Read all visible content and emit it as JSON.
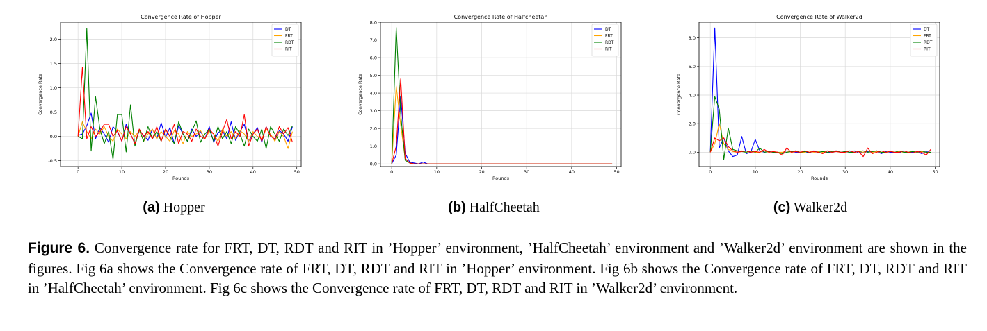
{
  "chart_data": [
    {
      "type": "line",
      "title": "Convergence Rate of Hopper",
      "xlabel": "Rounds",
      "ylabel": "Convergence Rate",
      "xlim": [
        -4,
        51
      ],
      "ylim": [
        -0.62,
        2.35
      ],
      "xticks": [
        0,
        10,
        20,
        30,
        40,
        50
      ],
      "yticks": [
        -0.5,
        0.0,
        0.5,
        1.0,
        1.5,
        2.0
      ],
      "ytick_labels": [
        "-0.5",
        "0.0",
        "0.5",
        "1.0",
        "1.5",
        "2.0"
      ],
      "grid": true,
      "legend": "top-right",
      "x": [
        0,
        1,
        2,
        3,
        4,
        5,
        6,
        7,
        8,
        9,
        10,
        11,
        12,
        13,
        14,
        15,
        16,
        17,
        18,
        19,
        20,
        21,
        22,
        23,
        24,
        25,
        26,
        27,
        28,
        29,
        30,
        31,
        32,
        33,
        34,
        35,
        36,
        37,
        38,
        39,
        40,
        41,
        42,
        43,
        44,
        45,
        46,
        47,
        48,
        49
      ],
      "series": [
        {
          "name": "DT",
          "color": "#0000ff",
          "values": [
            0.02,
            0.05,
            0.22,
            0.48,
            -0.05,
            0.18,
            0.05,
            -0.12,
            0.2,
            0.1,
            -0.1,
            0.25,
            0.05,
            -0.15,
            0.12,
            0.02,
            -0.08,
            0.15,
            -0.05,
            0.28,
            -0.02,
            0.18,
            -0.15,
            0.22,
            0.05,
            -0.1,
            0.15,
            0.0,
            0.1,
            -0.05,
            0.2,
            -0.12,
            0.08,
            0.12,
            -0.05,
            0.3,
            -0.08,
            0.1,
            0.25,
            -0.1,
            0.05,
            0.18,
            -0.12,
            0.2,
            0.02,
            -0.08,
            0.12,
            0.05,
            -0.1,
            0.2
          ]
        },
        {
          "name": "FRT",
          "color": "#ffa500",
          "values": [
            0.0,
            0.3,
            0.1,
            -0.05,
            0.15,
            0.05,
            0.2,
            0.0,
            -0.1,
            0.15,
            0.05,
            -0.05,
            0.1,
            0.0,
            0.12,
            -0.1,
            0.05,
            0.15,
            -0.05,
            0.1,
            0.0,
            -0.1,
            0.12,
            0.05,
            -0.15,
            0.1,
            0.0,
            0.05,
            0.12,
            -0.05,
            0.1,
            0.05,
            -0.1,
            0.15,
            0.0,
            0.1,
            -0.05,
            0.12,
            0.05,
            -0.1,
            0.1,
            0.0,
            -0.05,
            0.15,
            0.05,
            -0.1,
            0.1,
            0.0,
            -0.25,
            0.1
          ]
        },
        {
          "name": "RDT",
          "color": "#008000",
          "values": [
            0.0,
            -0.05,
            2.22,
            -0.3,
            0.82,
            0.15,
            -0.15,
            0.1,
            -0.47,
            0.45,
            0.45,
            -0.32,
            0.65,
            -0.2,
            0.15,
            -0.1,
            0.2,
            -0.05,
            0.1,
            -0.1,
            0.15,
            0.0,
            -0.15,
            0.3,
            0.05,
            -0.1,
            0.1,
            0.32,
            -0.12,
            0.05,
            0.15,
            -0.1,
            0.2,
            -0.05,
            0.1,
            -0.15,
            0.2,
            0.05,
            -0.2,
            0.15,
            0.0,
            -0.1,
            0.15,
            -0.25,
            0.2,
            0.05,
            -0.1,
            0.15,
            0.02,
            0.22
          ]
        },
        {
          "name": "RIT",
          "color": "#ff0000",
          "values": [
            0.0,
            1.42,
            -0.05,
            0.2,
            0.0,
            0.1,
            0.25,
            0.25,
            0.0,
            0.12,
            -0.1,
            0.2,
            0.05,
            -0.15,
            0.15,
            0.0,
            0.1,
            -0.05,
            0.2,
            -0.1,
            0.15,
            0.0,
            0.25,
            -0.15,
            0.1,
            0.05,
            -0.1,
            0.15,
            0.0,
            -0.05,
            0.15,
            0.05,
            -0.2,
            0.1,
            0.35,
            -0.05,
            0.1,
            0.0,
            0.45,
            -0.2,
            0.05,
            0.15,
            -0.1,
            0.2,
            0.0,
            -0.05,
            0.2,
            0.05,
            0.18,
            -0.12
          ]
        }
      ]
    },
    {
      "type": "line",
      "title": "Convergence Rate of Halfcheetah",
      "xlabel": "Rounds",
      "ylabel": "Convergence Rate",
      "xlim": [
        -2.5,
        51
      ],
      "ylim": [
        -0.15,
        8.0
      ],
      "xticks": [
        0,
        10,
        20,
        30,
        40,
        50
      ],
      "yticks": [
        0.0,
        1.0,
        2.0,
        3.0,
        4.0,
        5.0,
        6.0,
        7.0,
        8.0
      ],
      "ytick_labels": [
        "0.0",
        "1.0",
        "2.0",
        "3.0",
        "4.0",
        "5.0",
        "6.0",
        "7.0",
        "8.0"
      ],
      "grid": true,
      "legend": "top-right",
      "x": [
        0,
        1,
        2,
        3,
        4,
        5,
        6,
        7,
        8,
        9,
        10,
        11,
        12,
        13,
        14,
        15,
        16,
        17,
        18,
        19,
        20,
        21,
        22,
        23,
        24,
        25,
        26,
        27,
        28,
        29,
        30,
        31,
        32,
        33,
        34,
        35,
        36,
        37,
        38,
        39,
        40,
        41,
        42,
        43,
        44,
        45,
        46,
        47,
        48,
        49
      ],
      "series": [
        {
          "name": "DT",
          "color": "#0000ff",
          "values": [
            0.0,
            0.5,
            3.8,
            0.6,
            0.1,
            0.05,
            0.0,
            0.1,
            0.0,
            0.0,
            0.0,
            0.0,
            0.0,
            0.0,
            0.0,
            0.0,
            0.0,
            0.0,
            0.0,
            0.0,
            0.0,
            0.0,
            0.0,
            0.0,
            0.0,
            0.0,
            0.0,
            0.0,
            0.0,
            0.0,
            0.0,
            0.0,
            0.0,
            0.0,
            0.0,
            0.0,
            0.0,
            0.0,
            0.0,
            0.0,
            0.0,
            0.0,
            0.0,
            0.0,
            0.0,
            0.0,
            0.0,
            0.0,
            0.0,
            0.0
          ]
        },
        {
          "name": "FRT",
          "color": "#ffa500",
          "values": [
            0.0,
            4.4,
            2.2,
            0.3,
            0.05,
            0.0,
            0.0,
            0.0,
            0.0,
            0.0,
            0.0,
            0.0,
            0.0,
            0.0,
            0.0,
            0.0,
            0.0,
            0.0,
            0.0,
            0.0,
            0.0,
            0.0,
            0.0,
            0.0,
            0.0,
            0.0,
            0.0,
            0.0,
            0.0,
            0.0,
            0.0,
            0.0,
            0.0,
            0.0,
            0.0,
            0.0,
            0.0,
            0.0,
            0.0,
            0.0,
            0.0,
            0.0,
            0.0,
            0.0,
            0.0,
            0.0,
            0.0,
            0.0,
            0.0,
            0.0
          ]
        },
        {
          "name": "RDT",
          "color": "#008000",
          "values": [
            0.0,
            7.7,
            2.8,
            0.2,
            0.05,
            0.0,
            0.0,
            0.0,
            0.0,
            0.0,
            0.0,
            0.0,
            0.0,
            0.0,
            0.0,
            0.0,
            0.0,
            0.0,
            0.0,
            0.0,
            0.0,
            0.0,
            0.0,
            0.0,
            0.0,
            0.0,
            0.0,
            0.0,
            0.0,
            0.0,
            0.0,
            0.0,
            0.0,
            0.0,
            0.0,
            0.0,
            0.0,
            0.0,
            0.0,
            0.0,
            0.0,
            0.0,
            0.0,
            0.0,
            0.0,
            0.0,
            0.0,
            0.0,
            0.0,
            0.0
          ]
        },
        {
          "name": "RIT",
          "color": "#ff0000",
          "values": [
            0.0,
            1.0,
            4.8,
            0.3,
            0.05,
            0.0,
            0.0,
            0.0,
            0.0,
            0.0,
            0.0,
            0.0,
            0.0,
            0.0,
            0.0,
            0.0,
            0.0,
            0.0,
            0.0,
            0.0,
            0.0,
            0.0,
            0.0,
            0.0,
            0.0,
            0.0,
            0.0,
            0.0,
            0.0,
            0.0,
            0.0,
            0.0,
            0.0,
            0.0,
            0.0,
            0.0,
            0.0,
            0.0,
            0.0,
            0.0,
            0.0,
            0.0,
            0.0,
            0.0,
            0.0,
            0.0,
            0.0,
            0.0,
            0.0,
            0.0
          ]
        }
      ]
    },
    {
      "type": "line",
      "title": "Convergence Rate of Walker2d",
      "xlabel": "Rounds",
      "ylabel": "Convergence Rate",
      "xlim": [
        -2.5,
        51
      ],
      "ylim": [
        -1.0,
        9.1
      ],
      "xticks": [
        0,
        10,
        20,
        30,
        40,
        50
      ],
      "yticks": [
        0.0,
        2.0,
        4.0,
        6.0,
        8.0
      ],
      "ytick_labels": [
        "0.0",
        "2.0",
        "4.0",
        "6.0",
        "8.0"
      ],
      "grid": true,
      "legend": "top-right",
      "x": [
        0,
        1,
        2,
        3,
        4,
        5,
        6,
        7,
        8,
        9,
        10,
        11,
        12,
        13,
        14,
        15,
        16,
        17,
        18,
        19,
        20,
        21,
        22,
        23,
        24,
        25,
        26,
        27,
        28,
        29,
        30,
        31,
        32,
        33,
        34,
        35,
        36,
        37,
        38,
        39,
        40,
        41,
        42,
        43,
        44,
        45,
        46,
        47,
        48,
        49
      ],
      "series": [
        {
          "name": "DT",
          "color": "#0000ff",
          "values": [
            0.0,
            8.7,
            0.3,
            1.0,
            0.1,
            -0.3,
            -0.2,
            1.1,
            -0.1,
            0.0,
            0.9,
            0.1,
            0.0,
            0.05,
            0.0,
            0.0,
            -0.05,
            0.1,
            0.05,
            0.0,
            0.0,
            0.05,
            -0.05,
            0.1,
            0.0,
            0.05,
            0.0,
            -0.05,
            0.1,
            0.0,
            0.05,
            0.0,
            0.1,
            -0.05,
            0.0,
            0.05,
            0.0,
            0.1,
            -0.1,
            0.05,
            0.0,
            0.0,
            -0.05,
            0.1,
            0.0,
            0.0,
            0.05,
            -0.1,
            0.05,
            0.1
          ]
        },
        {
          "name": "FRT",
          "color": "#ffa500",
          "values": [
            0.0,
            0.6,
            2.0,
            0.6,
            0.2,
            0.05,
            0.0,
            0.1,
            0.0,
            0.05,
            0.0,
            0.0,
            0.1,
            0.0,
            0.05,
            0.0,
            0.0,
            0.1,
            0.0,
            0.05,
            0.0,
            0.0,
            0.1,
            0.0,
            0.05,
            0.0,
            0.1,
            0.0,
            0.05,
            0.0,
            0.0,
            0.1,
            0.0,
            0.05,
            0.0,
            0.1,
            0.0,
            0.05,
            0.0,
            0.0,
            0.1,
            0.0,
            0.05,
            0.0,
            0.0,
            0.1,
            0.0,
            0.05,
            0.0,
            0.0
          ]
        },
        {
          "name": "RDT",
          "color": "#008000",
          "values": [
            0.0,
            3.9,
            3.0,
            -0.5,
            1.7,
            0.2,
            0.1,
            0.05,
            0.0,
            0.1,
            0.0,
            0.3,
            0.0,
            0.05,
            0.0,
            0.0,
            -0.1,
            0.0,
            0.05,
            0.1,
            0.0,
            0.05,
            0.0,
            0.05,
            0.0,
            0.05,
            0.0,
            0.05,
            0.1,
            0.0,
            0.05,
            0.0,
            0.0,
            0.05,
            0.1,
            0.0,
            0.05,
            0.1,
            0.0,
            0.0,
            0.05,
            0.0,
            0.1,
            0.0,
            0.0,
            0.05,
            0.0,
            0.1,
            0.0,
            0.0
          ]
        },
        {
          "name": "RIT",
          "color": "#ff0000",
          "values": [
            0.0,
            1.0,
            0.8,
            1.0,
            0.4,
            0.1,
            0.0,
            0.05,
            0.1,
            0.0,
            0.05,
            0.0,
            0.2,
            0.0,
            0.05,
            0.0,
            -0.2,
            0.3,
            0.0,
            0.05,
            0.0,
            0.1,
            0.0,
            0.05,
            0.0,
            -0.1,
            0.1,
            0.0,
            0.05,
            0.0,
            0.0,
            0.1,
            0.0,
            0.05,
            -0.3,
            0.3,
            -0.1,
            0.0,
            0.1,
            0.0,
            0.05,
            0.0,
            0.0,
            0.1,
            0.0,
            -0.05,
            0.05,
            0.0,
            -0.2,
            0.2
          ]
        }
      ]
    }
  ],
  "subcaptions": [
    {
      "letter": "(a)",
      "text": "Hopper"
    },
    {
      "letter": "(b)",
      "text": "HalfCheetah"
    },
    {
      "letter": "(c)",
      "text": "Walker2d"
    }
  ],
  "figure_caption": {
    "label": "Figure 6.",
    "text": "Convergence rate for FRT, DT, RDT and RIT in ’Hopper’ environment, ’HalfCheetah’ environment and ’Walker2d’ environment are shown in the figures. Fig 6a shows the Convergence rate of FRT, DT, RDT and RIT in ’Hopper’ environment. Fig 6b shows the Convergence rate of FRT, DT, RDT and RIT in ’HalfCheetah’ environment. Fig 6c shows the Convergence rate of FRT, DT, RDT and RIT in ’Walker2d’ environment."
  }
}
